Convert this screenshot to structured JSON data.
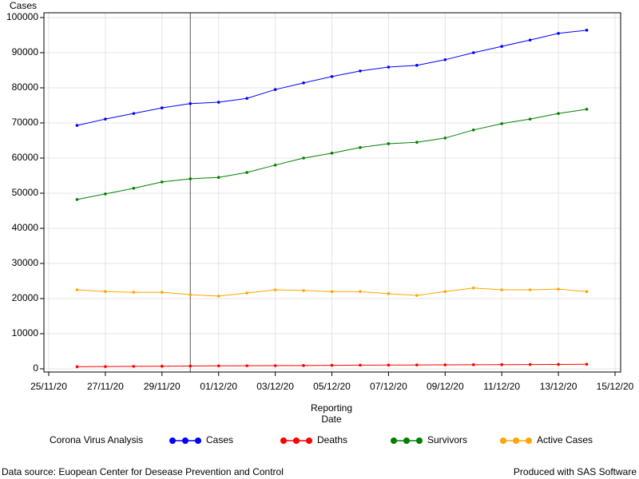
{
  "chart_data": {
    "type": "line",
    "ylabel": "Cases",
    "xlabel_lines": [
      "Reporting",
      "Date"
    ],
    "x": [
      "26/11/20",
      "27/11/20",
      "28/11/20",
      "29/11/20",
      "30/11/20",
      "01/12/20",
      "02/12/20",
      "03/12/20",
      "04/12/20",
      "05/12/20",
      "06/12/20",
      "07/12/20",
      "08/12/20",
      "09/12/20",
      "10/12/20",
      "11/12/20",
      "12/12/20",
      "13/12/20",
      "14/12/20"
    ],
    "series": [
      {
        "name": "Cases",
        "color": "#0000ff",
        "values": [
          69300,
          71100,
          72700,
          74300,
          75500,
          75900,
          77000,
          79500,
          81400,
          83200,
          84800,
          85900,
          86400,
          88000,
          90000,
          91800,
          93600,
          95500,
          96400
        ]
      },
      {
        "name": "Deaths",
        "color": "#ff0000",
        "values": [
          600,
          650,
          700,
          750,
          800,
          850,
          870,
          900,
          950,
          1000,
          1050,
          1080,
          1100,
          1130,
          1170,
          1200,
          1230,
          1260,
          1300
        ]
      },
      {
        "name": "Survivors",
        "color": "#008000",
        "values": [
          48200,
          49800,
          51400,
          53200,
          54100,
          54500,
          55900,
          58000,
          60000,
          61400,
          63000,
          64100,
          64500,
          65700,
          68000,
          69800,
          71100,
          72700,
          73900
        ]
      },
      {
        "name": "Active Cases",
        "color": "#ffa500",
        "values": [
          22500,
          22000,
          21800,
          21800,
          21100,
          20700,
          21600,
          22500,
          22300,
          22000,
          22000,
          21400,
          20900,
          22000,
          23000,
          22500,
          22500,
          22700,
          22000
        ]
      }
    ],
    "xlim": [
      "25/11/20",
      "15/12/20"
    ],
    "xticks": [
      "25/11/20",
      "27/11/20",
      "29/11/20",
      "01/12/20",
      "03/12/20",
      "05/12/20",
      "07/12/20",
      "09/12/20",
      "11/12/20",
      "13/12/20",
      "15/12/20"
    ],
    "ylim": [
      0,
      100000
    ],
    "yticks": [
      0,
      10000,
      20000,
      30000,
      40000,
      50000,
      60000,
      70000,
      80000,
      90000,
      100000
    ],
    "grid": true,
    "reference_line_x": "30/11/20",
    "legend_title": "Corona Virus Analysis",
    "legend": "bottom",
    "footnote_left": "Data source: Euopean Center for Desease Prevention and Control",
    "footnote_right": "Produced with SAS Software"
  }
}
